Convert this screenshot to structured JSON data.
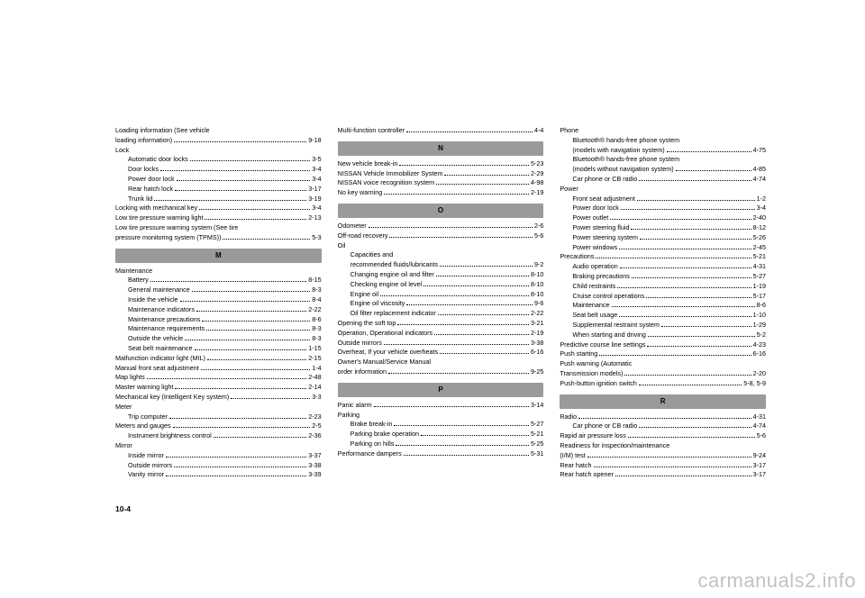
{
  "page_number": "10-4",
  "watermark": "carmanuals2.info",
  "columns": [
    {
      "items": [
        {
          "type": "row",
          "label": "Loading information (See vehicle",
          "page": ""
        },
        {
          "type": "row",
          "label": "loading information)",
          "page": "9-18"
        },
        {
          "type": "row",
          "label": "Lock",
          "page": ""
        },
        {
          "type": "row",
          "indent": 1,
          "label": "Automatic door locks",
          "page": "3-5"
        },
        {
          "type": "row",
          "indent": 1,
          "label": "Door locks",
          "page": "3-4"
        },
        {
          "type": "row",
          "indent": 1,
          "label": "Power door lock",
          "page": "3-4"
        },
        {
          "type": "row",
          "indent": 1,
          "label": "Rear hatch lock",
          "page": "3-17"
        },
        {
          "type": "row",
          "indent": 1,
          "label": "Trunk lid",
          "page": "3-19"
        },
        {
          "type": "row",
          "label": "Locking with mechanical key",
          "page": "3-4"
        },
        {
          "type": "row",
          "label": "Low tire pressure warning light",
          "page": "2-13"
        },
        {
          "type": "row",
          "label": "Low tire pressure warning system (See tire",
          "page": ""
        },
        {
          "type": "row",
          "label": "pressure monitoring system (TPMS))",
          "page": "5-3"
        },
        {
          "type": "header",
          "label": "M"
        },
        {
          "type": "row",
          "label": "Maintenance",
          "page": ""
        },
        {
          "type": "row",
          "indent": 1,
          "label": "Battery",
          "page": "8-15"
        },
        {
          "type": "row",
          "indent": 1,
          "label": "General maintenance",
          "page": "8-3"
        },
        {
          "type": "row",
          "indent": 1,
          "label": "Inside the vehicle",
          "page": "8-4"
        },
        {
          "type": "row",
          "indent": 1,
          "label": "Maintenance indicators",
          "page": "2-22"
        },
        {
          "type": "row",
          "indent": 1,
          "label": "Maintenance precautions",
          "page": "8-6"
        },
        {
          "type": "row",
          "indent": 1,
          "label": "Maintenance requirements",
          "page": "8-3"
        },
        {
          "type": "row",
          "indent": 1,
          "label": "Outside the vehicle",
          "page": "8-3"
        },
        {
          "type": "row",
          "indent": 1,
          "label": "Seat belt maintenance",
          "page": "1-15"
        },
        {
          "type": "row",
          "label": "Malfunction indicator light (MIL)",
          "page": "2-15"
        },
        {
          "type": "row",
          "label": "Manual front seat adjustment",
          "page": "1-4"
        },
        {
          "type": "row",
          "label": "Map lights",
          "page": "2-48"
        },
        {
          "type": "row",
          "label": "Master warning light",
          "page": "2-14"
        },
        {
          "type": "row",
          "label": "Mechanical key (Intelligent Key system)",
          "page": "3-3"
        },
        {
          "type": "row",
          "label": "Meter",
          "page": ""
        },
        {
          "type": "row",
          "indent": 1,
          "label": "Trip computer",
          "page": "2-23"
        },
        {
          "type": "row",
          "label": "Meters and gauges",
          "page": "2-5"
        },
        {
          "type": "row",
          "indent": 1,
          "label": "Instrument brightness control",
          "page": "2-36"
        },
        {
          "type": "row",
          "label": "Mirror",
          "page": ""
        },
        {
          "type": "row",
          "indent": 1,
          "label": "Inside mirror",
          "page": "3-37"
        },
        {
          "type": "row",
          "indent": 1,
          "label": "Outside mirrors",
          "page": "3-38"
        },
        {
          "type": "row",
          "indent": 1,
          "label": "Vanity mirror",
          "page": "3-39"
        }
      ]
    },
    {
      "items": [
        {
          "type": "row",
          "label": "Multi-function controller",
          "page": "4-4"
        },
        {
          "type": "header",
          "label": "N"
        },
        {
          "type": "row",
          "label": "New vehicle break-in",
          "page": "5-23"
        },
        {
          "type": "row",
          "label": "NISSAN Vehicle Immobilizer System",
          "page": "2-29"
        },
        {
          "type": "row",
          "label": "NISSAN voice recognition system",
          "page": "4-98"
        },
        {
          "type": "row",
          "label": "No key warning",
          "page": "2-19"
        },
        {
          "type": "header",
          "label": "O"
        },
        {
          "type": "row",
          "label": "Odometer",
          "page": "2-6"
        },
        {
          "type": "row",
          "label": "Off-road recovery",
          "page": "5-6"
        },
        {
          "type": "row",
          "label": "Oil",
          "page": ""
        },
        {
          "type": "row",
          "indent": 1,
          "label": "Capacities and",
          "page": ""
        },
        {
          "type": "row",
          "indent": 1,
          "label": "recommended fluids/lubricants",
          "page": "9-2"
        },
        {
          "type": "row",
          "indent": 1,
          "label": "Changing engine oil and filter",
          "page": "8-10"
        },
        {
          "type": "row",
          "indent": 1,
          "label": "Checking engine oil level",
          "page": "8-10"
        },
        {
          "type": "row",
          "indent": 1,
          "label": "Engine oil",
          "page": "8-10"
        },
        {
          "type": "row",
          "indent": 1,
          "label": "Engine oil viscosity",
          "page": "9-6"
        },
        {
          "type": "row",
          "indent": 1,
          "label": "Oil filter replacement indicator",
          "page": "2-22"
        },
        {
          "type": "row",
          "label": "Opening the soft top",
          "page": "3-21"
        },
        {
          "type": "row",
          "label": "Operation, Operational indicators",
          "page": "2-19"
        },
        {
          "type": "row",
          "label": "Outside mirrors",
          "page": "3-38"
        },
        {
          "type": "row",
          "label": "Overheat, If your vehicle overheats",
          "page": "6-16"
        },
        {
          "type": "row",
          "label": "Owner's Manual/Service Manual",
          "page": ""
        },
        {
          "type": "row",
          "label": "order information",
          "page": "9-25"
        },
        {
          "type": "header",
          "label": "P"
        },
        {
          "type": "row",
          "label": "Panic alarm",
          "page": "3-14"
        },
        {
          "type": "row",
          "label": "Parking",
          "page": ""
        },
        {
          "type": "row",
          "indent": 1,
          "label": "Brake break-in",
          "page": "5-27"
        },
        {
          "type": "row",
          "indent": 1,
          "label": "Parking brake operation",
          "page": "5-21"
        },
        {
          "type": "row",
          "indent": 1,
          "label": "Parking on hills",
          "page": "5-25"
        },
        {
          "type": "row",
          "label": "Performance dampers",
          "page": "5-31"
        }
      ]
    },
    {
      "items": [
        {
          "type": "row",
          "label": "Phone",
          "page": ""
        },
        {
          "type": "row",
          "indent": 1,
          "label": "Bluetooth® hands-free phone system",
          "page": ""
        },
        {
          "type": "row",
          "indent": 1,
          "label": "(models with navigation system)",
          "page": "4-75"
        },
        {
          "type": "row",
          "indent": 1,
          "label": "Bluetooth® hands-free phone system",
          "page": ""
        },
        {
          "type": "row",
          "indent": 1,
          "label": "(models without navigation system)",
          "page": "4-85"
        },
        {
          "type": "row",
          "indent": 1,
          "label": "Car phone or CB radio",
          "page": "4-74"
        },
        {
          "type": "row",
          "label": "Power",
          "page": ""
        },
        {
          "type": "row",
          "indent": 1,
          "label": "Front seat adjustment",
          "page": "1-2"
        },
        {
          "type": "row",
          "indent": 1,
          "label": "Power door lock",
          "page": "3-4"
        },
        {
          "type": "row",
          "indent": 1,
          "label": "Power outlet",
          "page": "2-40"
        },
        {
          "type": "row",
          "indent": 1,
          "label": "Power steering fluid",
          "page": "8-12"
        },
        {
          "type": "row",
          "indent": 1,
          "label": "Power steering system",
          "page": "5-26"
        },
        {
          "type": "row",
          "indent": 1,
          "label": "Power windows",
          "page": "2-45"
        },
        {
          "type": "row",
          "label": "Precautions",
          "page": "5-21"
        },
        {
          "type": "row",
          "indent": 1,
          "label": "Audio operation",
          "page": "4-31"
        },
        {
          "type": "row",
          "indent": 1,
          "label": "Braking precautions",
          "page": "5-27"
        },
        {
          "type": "row",
          "indent": 1,
          "label": "Child restraints",
          "page": "1-19"
        },
        {
          "type": "row",
          "indent": 1,
          "label": "Cruise control operations",
          "page": "5-17"
        },
        {
          "type": "row",
          "indent": 1,
          "label": "Maintenance",
          "page": "8-6"
        },
        {
          "type": "row",
          "indent": 1,
          "label": "Seat belt usage",
          "page": "1-10"
        },
        {
          "type": "row",
          "indent": 1,
          "label": "Supplemental restraint system",
          "page": "1-29"
        },
        {
          "type": "row",
          "indent": 1,
          "label": "When starting and driving",
          "page": "5-2"
        },
        {
          "type": "row",
          "label": "Predictive course line settings",
          "page": "4-23"
        },
        {
          "type": "row",
          "label": "Push starting",
          "page": "6-16"
        },
        {
          "type": "row",
          "label": "Push warning (Automatic",
          "page": ""
        },
        {
          "type": "row",
          "label": "Transmission models)",
          "page": "2-20"
        },
        {
          "type": "row",
          "label": "Push-button ignition switch",
          "page": "5-8, 5-9"
        },
        {
          "type": "header",
          "label": "R"
        },
        {
          "type": "row",
          "label": "Radio",
          "page": "4-31"
        },
        {
          "type": "row",
          "indent": 1,
          "label": "Car phone or CB radio",
          "page": "4-74"
        },
        {
          "type": "row",
          "label": "Rapid air pressure loss",
          "page": "5-6"
        },
        {
          "type": "row",
          "label": "Readiness for inspection/maintenance",
          "page": ""
        },
        {
          "type": "row",
          "label": "(I/M) test",
          "page": "9-24"
        },
        {
          "type": "row",
          "label": "Rear hatch",
          "page": "3-17"
        },
        {
          "type": "row",
          "label": "Rear hatch opener",
          "page": "3-17"
        }
      ]
    }
  ]
}
